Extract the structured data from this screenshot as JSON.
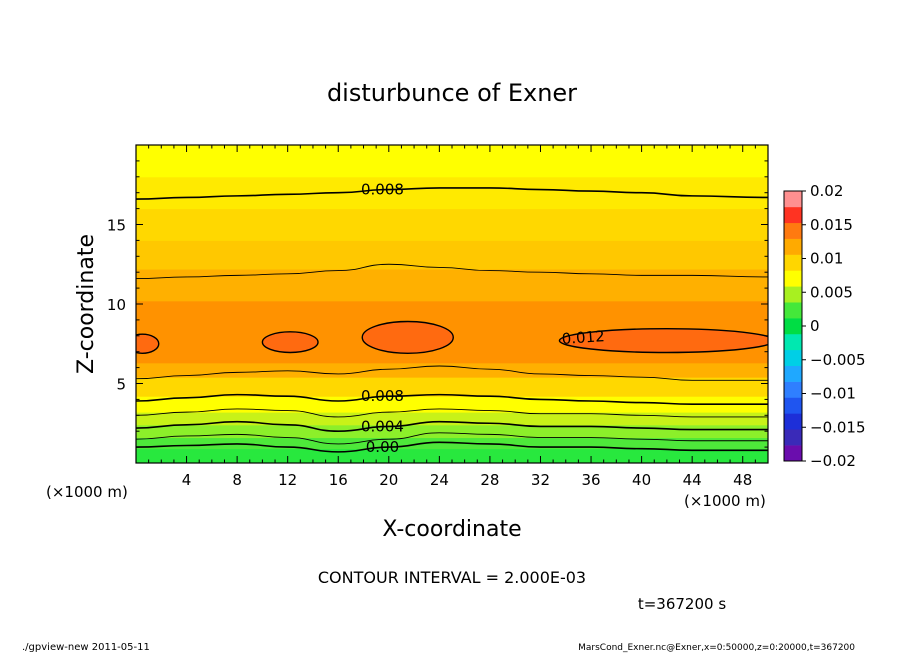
{
  "chart_data": {
    "type": "heatmap",
    "title": "disturbunce of Exner",
    "xlabel": "X-coordinate",
    "ylabel": "Z-coordinate",
    "x_unit": "(×1000 m)",
    "y_unit": "(×1000 m)",
    "xlim": [
      0,
      50
    ],
    "ylim": [
      0,
      20
    ],
    "x_ticks": [
      4,
      8,
      12,
      16,
      20,
      24,
      28,
      32,
      36,
      40,
      44,
      48
    ],
    "y_ticks": [
      5,
      10,
      15
    ],
    "colorbar": {
      "levels": [
        -0.02,
        -0.0175,
        -0.015,
        -0.0125,
        -0.01,
        -0.0075,
        -0.005,
        -0.0025,
        0,
        0.0025,
        0.005,
        0.0075,
        0.01,
        0.0125,
        0.015,
        0.0175,
        0.02
      ],
      "colors": [
        "#6a0dad",
        "#3a2ab8",
        "#1d2fd8",
        "#1f55f0",
        "#2f7fff",
        "#1fa8ff",
        "#00cfe6",
        "#00e8b0",
        "#00dd44",
        "#44e83a",
        "#a8f020",
        "#ffff00",
        "#ffd600",
        "#ffaa00",
        "#ff7a10",
        "#ff3322",
        "#ff9090"
      ],
      "tick_labels": [
        "0.02",
        "0.015",
        "0.01",
        "0.005",
        "0",
        "−0.005",
        "−0.01",
        "−0.015",
        "−0.02"
      ]
    },
    "contour_interval": 0.002,
    "contours": [
      {
        "level": 0.0,
        "label": "0.00",
        "y": [
          1.0,
          1.1,
          1.2,
          1.0,
          0.7,
          1.0,
          1.3,
          1.2,
          1.0,
          1.0,
          0.9,
          0.8,
          0.8
        ]
      },
      {
        "level": 0.002,
        "y": [
          1.5,
          1.7,
          1.8,
          1.6,
          1.2,
          1.5,
          1.9,
          1.8,
          1.6,
          1.6,
          1.5,
          1.4,
          1.4
        ]
      },
      {
        "level": 0.004,
        "label": "0.004",
        "y": [
          2.2,
          2.4,
          2.6,
          2.4,
          2.0,
          2.3,
          2.6,
          2.5,
          2.3,
          2.3,
          2.2,
          2.1,
          2.1
        ]
      },
      {
        "level": 0.006,
        "y": [
          3.0,
          3.2,
          3.4,
          3.3,
          2.9,
          3.2,
          3.4,
          3.3,
          3.1,
          3.1,
          3.0,
          2.9,
          2.9
        ]
      },
      {
        "level": 0.008,
        "label": "0.008",
        "y": [
          3.9,
          4.1,
          4.3,
          4.2,
          3.9,
          4.2,
          4.3,
          4.2,
          4.0,
          3.9,
          3.8,
          3.7,
          3.7
        ]
      },
      {
        "level": 0.01,
        "y": [
          5.3,
          5.5,
          5.7,
          5.8,
          5.6,
          5.9,
          6.1,
          5.9,
          5.6,
          5.5,
          5.4,
          5.2,
          5.2
        ]
      },
      {
        "level": 0.01,
        "y": [
          11.6,
          11.7,
          11.8,
          11.9,
          12.1,
          12.5,
          12.3,
          12.1,
          12.0,
          11.9,
          11.8,
          11.8,
          11.7
        ]
      },
      {
        "level": 0.008,
        "label": "0.008",
        "y": [
          16.6,
          16.7,
          16.8,
          16.9,
          17.0,
          17.2,
          17.3,
          17.3,
          17.2,
          17.1,
          17.0,
          16.8,
          16.7
        ]
      }
    ],
    "contour_x": [
      0,
      4,
      8,
      12,
      16,
      20,
      24,
      28,
      32,
      36,
      40,
      44,
      50
    ],
    "max_regions": [
      {
        "level": 0.012,
        "center": [
          0.5,
          7.5
        ],
        "rx": 1.3,
        "ry": 0.6
      },
      {
        "level": 0.012,
        "center": [
          12.2,
          7.6
        ],
        "rx": 2.2,
        "ry": 0.65
      },
      {
        "level": 0.012,
        "center": [
          21.5,
          7.9
        ],
        "rx": 3.6,
        "ry": 1.0
      },
      {
        "level": 0.012,
        "label": "0.012",
        "center": [
          42,
          7.7
        ],
        "rx": 8.5,
        "ry": 0.75
      }
    ],
    "annotations": {
      "contour_text": "CONTOUR INTERVAL = 2.000E-03",
      "time_text": "t=367200 s"
    }
  },
  "footer": {
    "left": "./gpview-new   2011-05-11",
    "right": "MarsCond_Exner.nc@Exner,x=0:50000,z=0:20000,t=367200"
  }
}
